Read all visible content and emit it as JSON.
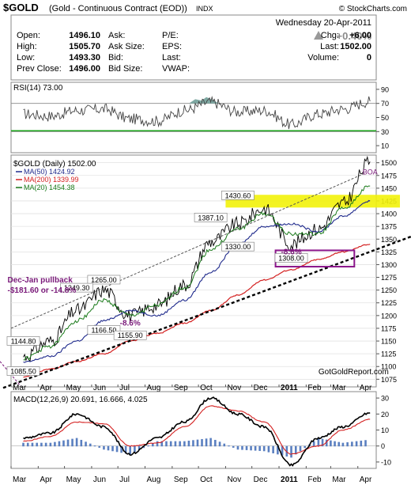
{
  "header": {
    "ticker": "$GOLD",
    "description": "(Gold - Continuous Contract (EOD))",
    "exchange": "INDX",
    "watermark": "© StockCharts.com",
    "date": "Wednesday  20-Apr-2011",
    "change_pct": "+0.40%",
    "quote_rows": [
      {
        "l1": "Open:",
        "v1": "1496.10",
        "l2": "Ask:",
        "v2": "",
        "l3": "P/E:",
        "v3": "",
        "l4": "Chg:",
        "v4": "+6.00"
      },
      {
        "l1": "High:",
        "v1": "1505.70",
        "l2": "Ask Size:",
        "v2": "",
        "l3": "EPS:",
        "v3": "",
        "l4": "Last:",
        "v4": "1502.00"
      },
      {
        "l1": "Low:",
        "v1": "1493.30",
        "l2": "Bid:",
        "v2": "",
        "l3": "Last:",
        "v3": "",
        "l4": "Volume:",
        "v4": "0"
      },
      {
        "l1": "Prev Close:",
        "v1": "1496.00",
        "l2": "Bid Size:",
        "v2": "",
        "l3": "VWAP:",
        "v3": "",
        "l4": "",
        "v4": ""
      }
    ]
  },
  "colors": {
    "price": "#000000",
    "ma50": "#1f2a8c",
    "ma200": "#d42020",
    "ma20": "#1a7a1a",
    "zone": "#f2f20a",
    "box": "#8b168b",
    "annotation": "#7a1a7a",
    "rsi_fill": "#7fa9a3",
    "rsi_green": "#1aa51a",
    "hist": "#5a7fc0"
  },
  "chart_data": [
    {
      "type": "line",
      "panel": "RSI",
      "legend": "RSI(14) 73.00",
      "ylim": [
        0,
        100
      ],
      "yticks": [
        10,
        30,
        50,
        70,
        90
      ],
      "reference_lines": [
        70,
        30
      ],
      "x": [
        "2010-03",
        "2010-04",
        "2010-05",
        "2010-06",
        "2010-07",
        "2010-08",
        "2010-09",
        "2010-10",
        "2010-11",
        "2010-12",
        "2011-01",
        "2011-02",
        "2011-03",
        "2011-04"
      ],
      "series": [
        {
          "name": "RSI(14)",
          "values": [
            55,
            52,
            60,
            62,
            48,
            45,
            60,
            72,
            58,
            60,
            40,
            55,
            62,
            73
          ]
        }
      ]
    },
    {
      "type": "line",
      "panel": "Price",
      "legend_title": "$GOLD (Daily) 1502.00",
      "ylim": [
        1060,
        1515
      ],
      "yticks": [
        1075,
        1100,
        1125,
        1150,
        1175,
        1200,
        1225,
        1250,
        1275,
        1300,
        1325,
        1350,
        1375,
        1400,
        1425,
        1450,
        1475,
        1500
      ],
      "x_labels": [
        "Mar",
        "Apr",
        "May",
        "Jun",
        "Jul",
        "Aug",
        "Sep",
        "Oct",
        "Nov",
        "Dec",
        "2011",
        "Feb",
        "Mar",
        "Apr"
      ],
      "x": [
        "2010-03",
        "2010-04",
        "2010-05",
        "2010-06",
        "2010-07",
        "2010-08",
        "2010-09",
        "2010-10",
        "2010-11",
        "2010-12",
        "2011-01",
        "2011-02",
        "2011-03",
        "2011-04"
      ],
      "series": [
        {
          "name": "$GOLD (Daily) 1502.00",
          "values": [
            1120,
            1150,
            1210,
            1250,
            1200,
            1220,
            1260,
            1345,
            1380,
            1410,
            1340,
            1370,
            1420,
            1502
          ]
        },
        {
          "name": "MA(50) 1424.92",
          "values": [
            1108,
            1120,
            1150,
            1190,
            1210,
            1200,
            1230,
            1285,
            1340,
            1375,
            1380,
            1365,
            1395,
            1425
          ]
        },
        {
          "name": "MA(200) 1339.99",
          "values": [
            1080,
            1095,
            1110,
            1125,
            1150,
            1165,
            1185,
            1210,
            1240,
            1270,
            1290,
            1310,
            1325,
            1340
          ]
        },
        {
          "name": "MA(20) 1454.38",
          "values": [
            1115,
            1140,
            1190,
            1230,
            1200,
            1220,
            1255,
            1330,
            1370,
            1400,
            1360,
            1360,
            1410,
            1454
          ]
        }
      ],
      "annotations": [
        {
          "text": "1430.60",
          "x": "2010-11",
          "y": 1430.6
        },
        {
          "text": "1387.10",
          "x": "2010-10",
          "y": 1387.1
        },
        {
          "text": "1330.00",
          "x": "2010-11",
          "y": 1330
        },
        {
          "text": "1308.00",
          "x": "2011-01",
          "y": 1308
        },
        {
          "text": "1265.00",
          "x": "2010-06",
          "y": 1265
        },
        {
          "text": "1249.30",
          "x": "2010-05",
          "y": 1249.3
        },
        {
          "text": "1166.50",
          "x": "2010-06",
          "y": 1166.5
        },
        {
          "text": "1155.90",
          "x": "2010-07",
          "y": 1155.9
        },
        {
          "text": "1144.80",
          "x": "2010-03",
          "y": 1144.8
        },
        {
          "text": "1085.50",
          "x": "2010-03",
          "y": 1085.5
        },
        {
          "text": "-8.6%",
          "x": "2010-07",
          "y": 1180
        },
        {
          "text": "-8.6%",
          "x": "2011-01",
          "y": 1320
        },
        {
          "text": "BOA",
          "x": "2011-04",
          "y": 1477
        },
        {
          "text": "Dec-Jan pullback",
          "x": "2010-03",
          "y": 1265
        },
        {
          "text": "-$181.60 or -14.8%",
          "x": "2010-03",
          "y": 1245
        },
        {
          "text": "GotGoldReport.com",
          "x": "2011-02",
          "y": 1085
        }
      ]
    },
    {
      "type": "line",
      "panel": "MACD",
      "legend": "MACD(12,26,9) 20.691, 16.666, 4.025",
      "ylim": [
        -14,
        34
      ],
      "yticks": [
        -10,
        0,
        10,
        20,
        30
      ],
      "x": [
        "2010-03",
        "2010-04",
        "2010-05",
        "2010-06",
        "2010-07",
        "2010-08",
        "2010-09",
        "2010-10",
        "2010-11",
        "2010-12",
        "2011-01",
        "2011-02",
        "2011-03",
        "2011-04"
      ],
      "series": [
        {
          "name": "MACD",
          "values": [
            5,
            8,
            20,
            12,
            -5,
            5,
            15,
            30,
            20,
            12,
            -12,
            5,
            12,
            20.691
          ]
        },
        {
          "name": "Signal",
          "values": [
            3,
            6,
            15,
            14,
            0,
            2,
            12,
            25,
            22,
            15,
            -5,
            0,
            10,
            16.666
          ]
        },
        {
          "name": "Histogram",
          "values": [
            2,
            2,
            5,
            -2,
            -5,
            3,
            3,
            5,
            -2,
            -3,
            -7,
            5,
            2,
            4.025
          ]
        }
      ]
    }
  ]
}
